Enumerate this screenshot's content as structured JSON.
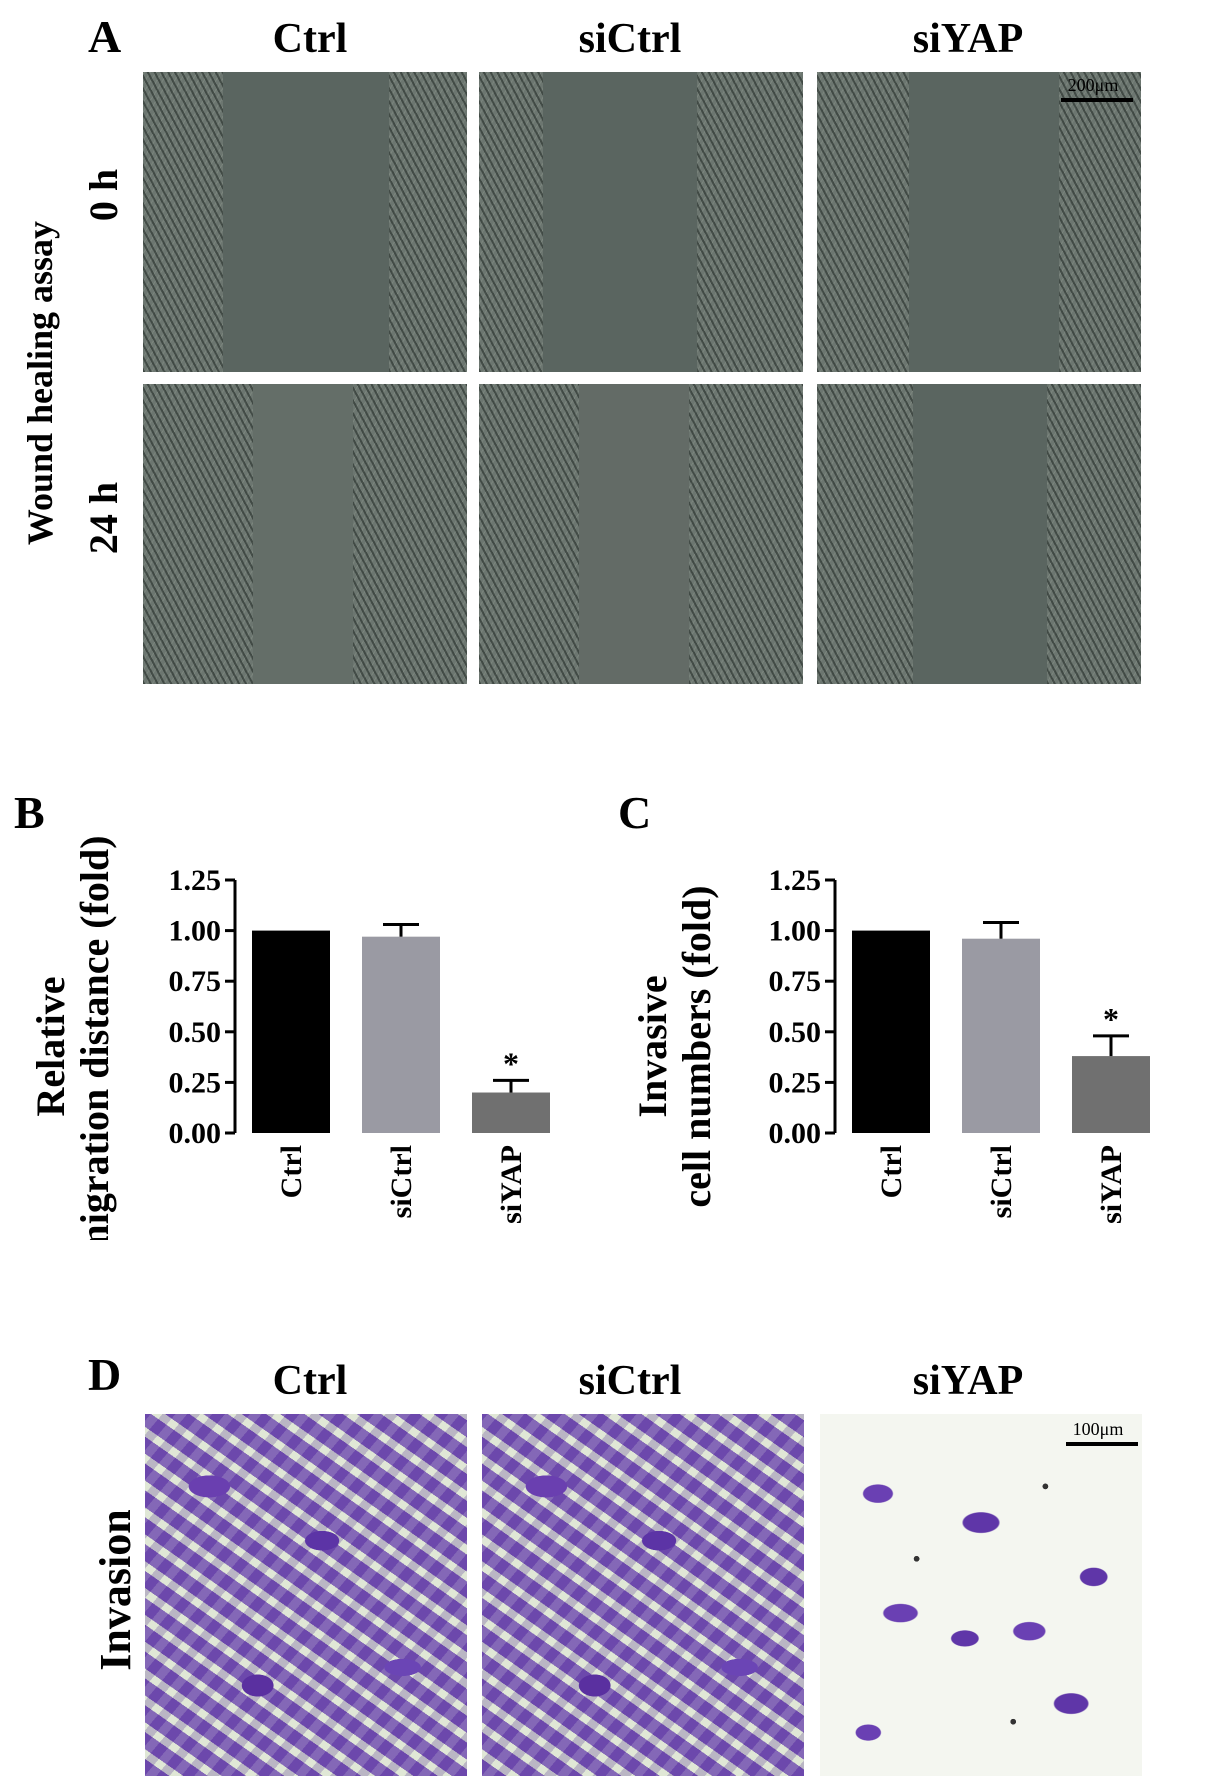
{
  "panel_A": {
    "letter": "A",
    "columns": [
      "Ctrl",
      "siCtrl",
      "siYAP"
    ],
    "assay_label": "Wound healing assay",
    "rows": [
      "0 h",
      "24 h"
    ],
    "scale_bar": "200μm"
  },
  "panel_D": {
    "letter": "D",
    "columns": [
      "Ctrl",
      "siCtrl",
      "siYAP"
    ],
    "row_label": "Invasion",
    "scale_bar": "100μm"
  },
  "chart_data": [
    {
      "panel": "B",
      "type": "bar",
      "ylabel_lines": [
        "Relative",
        "migration distance (fold)"
      ],
      "categories": [
        "Ctrl",
        "siCtrl",
        "siYAP"
      ],
      "values": [
        1.0,
        0.97,
        0.2
      ],
      "errors": [
        0.0,
        0.06,
        0.06
      ],
      "annotations": [
        "",
        "",
        "*"
      ],
      "colors": [
        "#000000",
        "#9a9aa3",
        "#707070"
      ],
      "ylim": [
        0,
        1.25
      ],
      "yticks": [
        "0.00",
        "0.25",
        "0.50",
        "0.75",
        "1.00",
        "1.25"
      ]
    },
    {
      "panel": "C",
      "type": "bar",
      "ylabel_lines": [
        "Invasive",
        "cell numbers (fold)"
      ],
      "categories": [
        "Ctrl",
        "siCtrl",
        "siYAP"
      ],
      "values": [
        1.0,
        0.96,
        0.38
      ],
      "errors": [
        0.0,
        0.08,
        0.1
      ],
      "annotations": [
        "",
        "",
        "*"
      ],
      "colors": [
        "#000000",
        "#9a9aa3",
        "#707070"
      ],
      "ylim": [
        0,
        1.25
      ],
      "yticks": [
        "0.00",
        "0.25",
        "0.50",
        "0.75",
        "1.00",
        "1.25"
      ]
    }
  ]
}
